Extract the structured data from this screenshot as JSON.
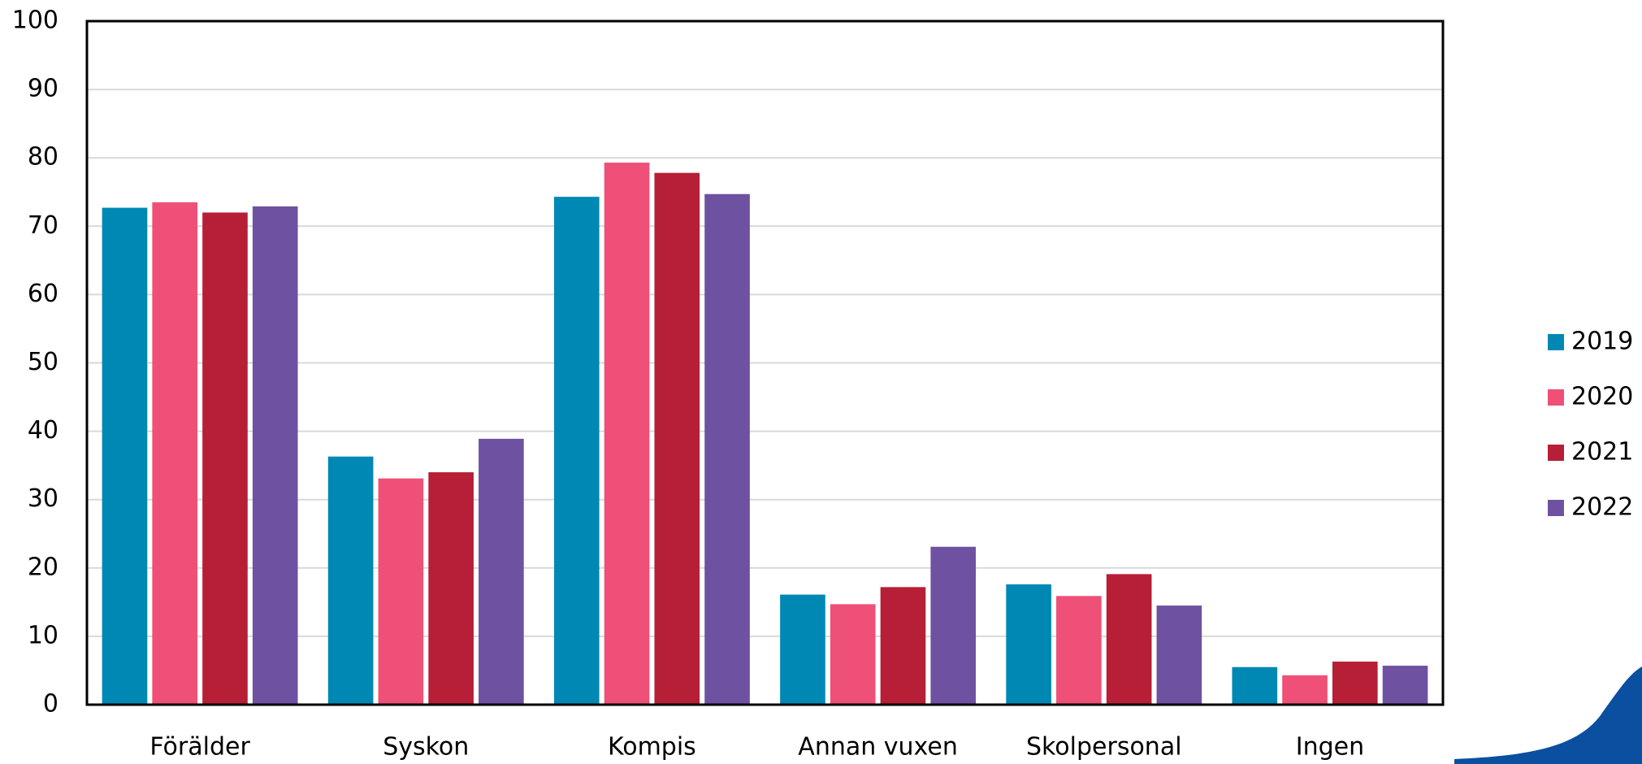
{
  "chart_data": {
    "type": "bar",
    "categories": [
      "Förälder",
      "Syskon",
      "Kompis",
      "Annan vuxen",
      "Skolpersonal",
      "Ingen"
    ],
    "series": [
      {
        "name": "2019",
        "color": "#0088b5",
        "values": [
          72.7,
          36.3,
          74.3,
          16.1,
          17.6,
          5.5
        ]
      },
      {
        "name": "2020",
        "color": "#ee5078",
        "values": [
          73.5,
          33.1,
          79.3,
          14.7,
          15.9,
          4.3
        ]
      },
      {
        "name": "2021",
        "color": "#b61f35",
        "values": [
          72.0,
          34.0,
          77.8,
          17.2,
          19.1,
          6.3
        ]
      },
      {
        "name": "2022",
        "color": "#6e52a1",
        "values": [
          72.9,
          38.9,
          74.7,
          23.1,
          14.5,
          5.7
        ]
      }
    ],
    "ylim": [
      0,
      100
    ],
    "yticks": [
      0,
      10,
      20,
      30,
      40,
      50,
      60,
      70,
      80,
      90,
      100
    ],
    "grid": true,
    "legend": "right"
  }
}
